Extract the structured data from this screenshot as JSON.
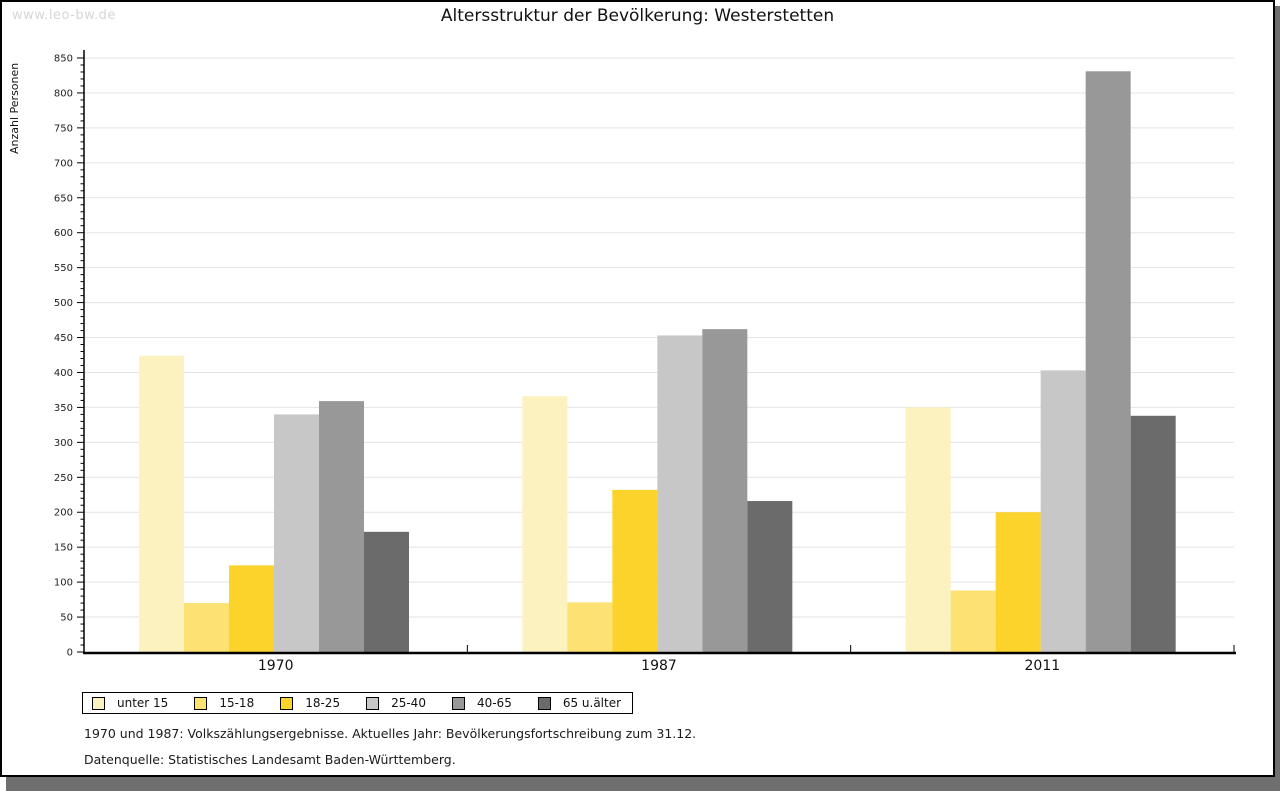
{
  "watermark": "www.leo-bw.de",
  "title": "Altersstruktur der Bevölkerung: Westerstetten",
  "footer": {
    "line1": "1970 und 1987: Volkszählungsergebnisse. Aktuelles Jahr: Bevölkerungsfortschreibung zum 31.12.",
    "line2": "Datenquelle: Statistisches Landesamt Baden-Württemberg."
  },
  "chart_data": {
    "type": "bar",
    "title": "Altersstruktur der Bevölkerung: Westerstetten",
    "xlabel": "",
    "ylabel": "Anzahl Personen",
    "categories": [
      "1970",
      "1987",
      "2011"
    ],
    "series": [
      {
        "name": "unter 15",
        "color": "#FBF2C0",
        "values": [
          424,
          366,
          350
        ]
      },
      {
        "name": "15-18",
        "color": "#FBE273",
        "values": [
          70,
          71,
          88
        ]
      },
      {
        "name": "18-25",
        "color": "#FCD32B",
        "values": [
          124,
          232,
          200
        ]
      },
      {
        "name": "25-40",
        "color": "#C7C7C7",
        "values": [
          340,
          453,
          403
        ]
      },
      {
        "name": "40-65",
        "color": "#989898",
        "values": [
          359,
          462,
          831
        ]
      },
      {
        "name": "65 u.älter",
        "color": "#6B6B6B",
        "values": [
          172,
          216,
          338
        ]
      }
    ],
    "ylim": [
      0,
      850
    ],
    "ytick_step": 50,
    "minor_tick_step": 10,
    "grid": true,
    "gridline_color": "#E3E3E3",
    "legend_position": "bottom-left"
  }
}
